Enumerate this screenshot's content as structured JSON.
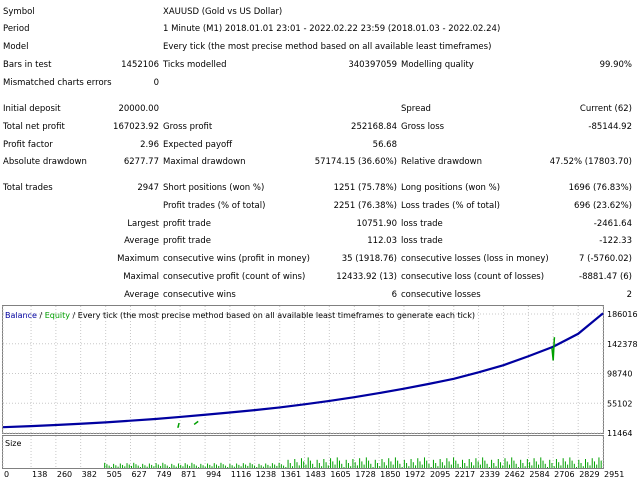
{
  "report": {
    "symbol_label": "Symbol",
    "symbol_value": "XAUUSD (Gold vs US Dollar)",
    "period_label": "Period",
    "period_value": "1 Minute (M1) 2018.01.01 23:01 - 2022.02.22 23:59 (2018.01.03 - 2022.02.24)",
    "model_label": "Model",
    "model_value": "Every tick (the most precise method based on all available least timeframes)",
    "bars_label": "Bars in test",
    "bars_value": "1452106",
    "ticks_label": "Ticks modelled",
    "ticks_value": "340397059",
    "quality_label": "Modelling quality",
    "quality_value": "99.90%",
    "mismatch_label": "Mismatched charts errors",
    "mismatch_value": "0",
    "deposit_label": "Initial deposit",
    "deposit_value": "20000.00",
    "spread_label": "Spread",
    "spread_value": "Current (62)",
    "netprofit_label": "Total net profit",
    "netprofit_value": "167023.92",
    "grossprofit_label": "Gross profit",
    "grossprofit_value": "252168.84",
    "grossloss_label": "Gross loss",
    "grossloss_value": "-85144.92",
    "pf_label": "Profit factor",
    "pf_value": "2.96",
    "payoff_label": "Expected payoff",
    "payoff_value": "56.68",
    "absdd_label": "Absolute drawdown",
    "absdd_value": "6277.77",
    "maxdd_label": "Maximal drawdown",
    "maxdd_value": "57174.15 (36.60%)",
    "reldd_label": "Relative drawdown",
    "reldd_value": "47.52% (17803.70)",
    "trades_label": "Total trades",
    "trades_value": "2947",
    "short_label": "Short positions (won %)",
    "short_value": "1251 (75.78%)",
    "long_label": "Long positions (won %)",
    "long_value": "1696 (76.83%)",
    "ptrades_label": "Profit trades (% of total)",
    "ptrades_value": "2251 (76.38%)",
    "ltrades_label": "Loss trades (% of total)",
    "ltrades_value": "696 (23.62%)",
    "largest_label": "Largest",
    "largest_profit_label": "profit trade",
    "largest_profit_value": "10751.90",
    "largest_loss_label": "loss trade",
    "largest_loss_value": "-2461.64",
    "average_label": "Average",
    "average_profit_label": "profit trade",
    "average_profit_value": "112.03",
    "average_loss_label": "loss trade",
    "average_loss_value": "-122.33",
    "maximum_label": "Maximum",
    "max_wins_label": "consecutive wins (profit in money)",
    "max_wins_value": "35 (1918.76)",
    "max_losses_label": "consecutive losses (loss in money)",
    "max_losses_value": "7 (-5760.02)",
    "maximal_label": "Maximal",
    "maximal_profit_label": "consecutive profit (count of wins)",
    "maximal_profit_value": "12433.92 (13)",
    "maximal_loss_label": "consecutive loss (count of losses)",
    "maximal_loss_value": "-8881.47 (6)",
    "avgc_label": "Average",
    "avgc_wins_label": "consecutive wins",
    "avgc_wins_value": "6",
    "avgc_losses_label": "consecutive losses",
    "avgc_losses_value": "2"
  },
  "chart_data": {
    "type": "line",
    "legend_balance": "Balance",
    "legend_sep": " / ",
    "legend_equity": "Equity",
    "legend_desc": " / Every tick (the most precise method based on all available least timeframes to generate each tick)",
    "size_label": "Size",
    "x_ticks": [
      "0",
      "138",
      "260",
      "382",
      "505",
      "627",
      "749",
      "871",
      "994",
      "1116",
      "1238",
      "1361",
      "1483",
      "1605",
      "1728",
      "1850",
      "1972",
      "2095",
      "2217",
      "2339",
      "2462",
      "2584",
      "2706",
      "2829",
      "2951"
    ],
    "y_ticks": [
      "186016",
      "142378",
      "98740",
      "55102",
      "11464"
    ],
    "ylim": [
      11464,
      186016
    ],
    "xlim": [
      0,
      2951
    ],
    "series": [
      {
        "name": "Balance",
        "color": "#0000a0",
        "x": [
          0,
          138,
          260,
          382,
          505,
          627,
          749,
          871,
          994,
          1116,
          1238,
          1361,
          1483,
          1605,
          1728,
          1850,
          1972,
          2095,
          2217,
          2339,
          2462,
          2584,
          2706,
          2829,
          2951
        ],
        "values": [
          20000,
          21500,
          23200,
          25000,
          27000,
          29500,
          32000,
          35000,
          38200,
          41500,
          45000,
          49000,
          53500,
          58500,
          64000,
          70000,
          76500,
          83500,
          91000,
          100500,
          111000,
          124000,
          138000,
          157000,
          187000
        ]
      },
      {
        "name": "Equity",
        "color": "#00a000",
        "x": [
          860,
          866,
          940,
          960,
          2700,
          2706,
          2712
        ],
        "values": [
          19000,
          26000,
          24000,
          28500,
          136000,
          118000,
          152000
        ]
      }
    ]
  },
  "colors": {
    "balance": "#0000a0",
    "equity": "#00a000",
    "grid": "#c8c8c8",
    "border": "#808080"
  }
}
